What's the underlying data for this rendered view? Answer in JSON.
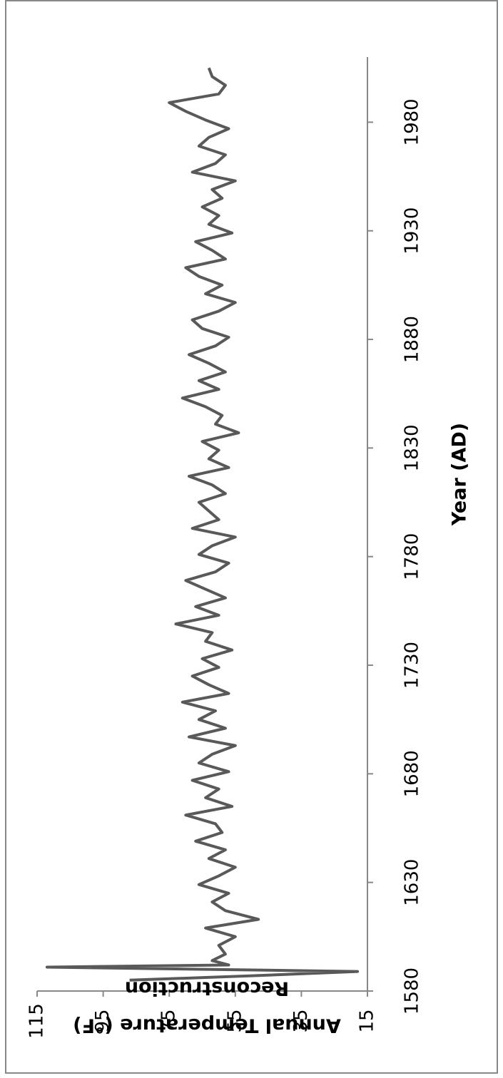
{
  "chart_data": {
    "type": "line",
    "orientation": "rotated",
    "x_label": "Year (AD)",
    "y_label": [
      "Annual Temperature (°F)",
      "Reconstruction"
    ],
    "xlim": [
      1580,
      2010
    ],
    "xticks": [
      1580,
      1630,
      1680,
      1730,
      1780,
      1830,
      1880,
      1930,
      1980
    ],
    "ylim": [
      15,
      115
    ],
    "yticks": [
      15,
      35,
      55,
      75,
      95,
      115
    ],
    "x": [
      1585,
      1587,
      1589,
      1591,
      1592,
      1594,
      1597,
      1601,
      1605,
      1609,
      1613,
      1617,
      1621,
      1625,
      1629,
      1633,
      1637,
      1641,
      1645,
      1649,
      1653,
      1657,
      1661,
      1665,
      1669,
      1673,
      1677,
      1681,
      1685,
      1689,
      1693,
      1697,
      1701,
      1705,
      1709,
      1713,
      1717,
      1721,
      1725,
      1729,
      1733,
      1737,
      1741,
      1745,
      1749,
      1753,
      1757,
      1761,
      1765,
      1769,
      1773,
      1777,
      1781,
      1785,
      1789,
      1793,
      1797,
      1801,
      1805,
      1809,
      1813,
      1817,
      1821,
      1825,
      1829,
      1833,
      1837,
      1841,
      1845,
      1849,
      1853,
      1857,
      1861,
      1865,
      1869,
      1873,
      1877,
      1881,
      1885,
      1889,
      1893,
      1897,
      1901,
      1905,
      1909,
      1913,
      1917,
      1921,
      1925,
      1929,
      1933,
      1937,
      1941,
      1945,
      1949,
      1953,
      1957,
      1961,
      1965,
      1969,
      1973,
      1977,
      1981,
      1985,
      1989,
      1993,
      1997,
      2001,
      2005
    ],
    "series": [
      {
        "color": "#595959",
        "values": [
          87,
          50,
          18,
          112,
          57,
          62,
          58,
          60,
          55,
          64,
          48,
          58,
          62,
          57,
          66,
          60,
          55,
          63,
          58,
          67,
          59,
          61,
          70,
          56,
          64,
          60,
          68,
          57,
          66,
          62,
          55,
          69,
          58,
          66,
          61,
          71,
          57,
          63,
          68,
          60,
          65,
          56,
          64,
          62,
          73,
          60,
          67,
          58,
          64,
          70,
          61,
          57,
          66,
          62,
          55,
          68,
          60,
          63,
          66,
          58,
          62,
          69,
          57,
          63,
          60,
          65,
          54,
          61,
          59,
          64,
          71,
          60,
          66,
          58,
          63,
          69,
          61,
          57,
          65,
          68,
          60,
          55,
          64,
          59,
          66,
          70,
          58,
          62,
          67,
          56,
          63,
          60,
          65,
          59,
          62,
          55,
          68,
          61,
          58,
          66,
          63,
          57,
          64,
          70,
          75,
          60,
          58,
          62,
          63
        ]
      }
    ]
  }
}
